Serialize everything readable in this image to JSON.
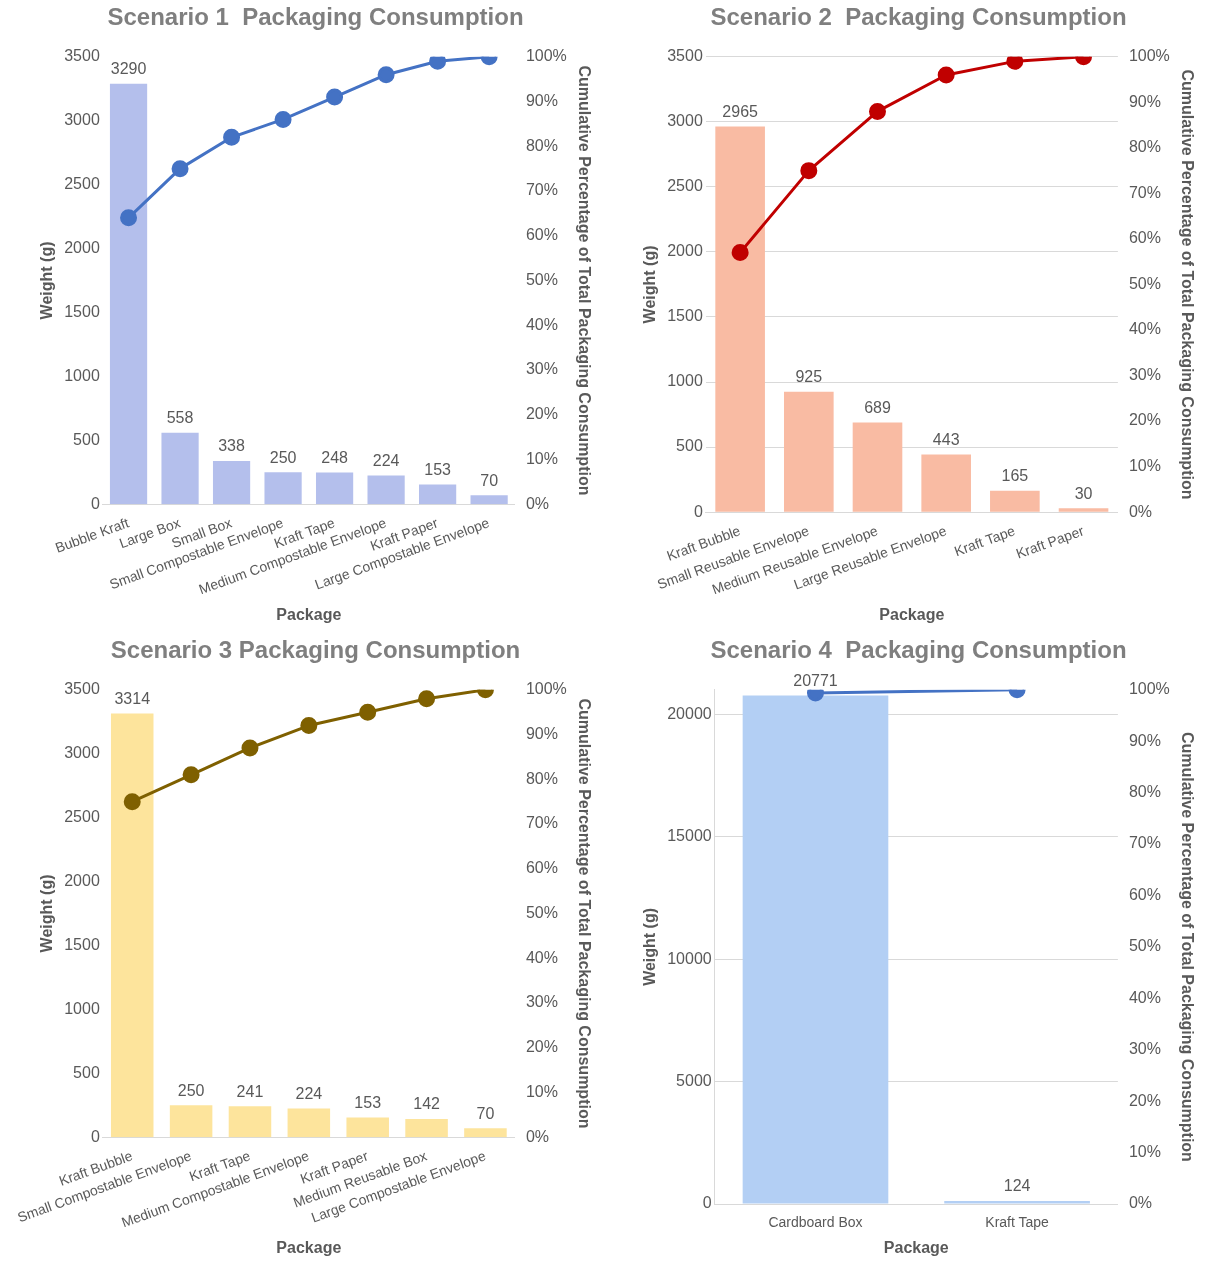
{
  "chart_data": [
    {
      "type": "bar",
      "title": "Scenario 1  Packaging Consumption",
      "xlabel": "Package",
      "ylabel": "Weight (g)",
      "y2label": "Cumulative Percentage of Total Packaging Consumption",
      "categories": [
        "Bubble Kraft",
        "Large Box",
        "Small Box",
        "Small Compostable Envelope",
        "Kraft Tape",
        "Medium Compostable Envelope",
        "Kraft Paper",
        "Large Compostable Envelope"
      ],
      "series": [
        {
          "color": "#b4bfec",
          "values": [
            3290,
            558,
            338,
            250,
            248,
            224,
            153,
            70
          ],
          "value_labels": [
            "3290",
            "558",
            "338",
            "250",
            "248",
            "224",
            "153",
            "70"
          ]
        },
        {
          "type": "line",
          "axis": "y2",
          "color": "#4472c4",
          "values": [
            64,
            75,
            82,
            86,
            91,
            96,
            99,
            100
          ]
        }
      ],
      "ylim": [
        0,
        3500
      ],
      "yticks": [
        0,
        500,
        1000,
        1500,
        2000,
        2500,
        3000,
        3500
      ],
      "y2lim": [
        0,
        100
      ],
      "y2ticks": [
        {
          "value": 0,
          "label": "0%"
        },
        {
          "value": 10,
          "label": "10%"
        },
        {
          "value": 20,
          "label": "20%"
        },
        {
          "value": 30,
          "label": "30%"
        },
        {
          "value": 40,
          "label": "40%"
        },
        {
          "value": 50,
          "label": "50%"
        },
        {
          "value": 60,
          "label": "60%"
        },
        {
          "value": 70,
          "label": "70%"
        },
        {
          "value": 80,
          "label": "80%"
        },
        {
          "value": 90,
          "label": "90%"
        },
        {
          "value": 100,
          "label": "100%"
        }
      ],
      "grid": false,
      "legend": false,
      "marker": "circle",
      "line_style": "solid"
    },
    {
      "type": "bar",
      "title": "Scenario 2  Packaging Consumption",
      "xlabel": "Package",
      "ylabel": "Weight (g)",
      "y2label": "Cumulative Percentage of Total Packaging Consumption",
      "categories": [
        "Kraft Bubble",
        "Small Reusable Envelope",
        "Medium Reusable Envelope",
        "Large Reusable Envelope",
        "Kraft Tape",
        "Kraft Paper"
      ],
      "series": [
        {
          "color": "#f9bba3",
          "values": [
            2965,
            925,
            689,
            443,
            165,
            30
          ],
          "value_labels": [
            "2965",
            "925",
            "689",
            "443",
            "165",
            "30"
          ]
        },
        {
          "type": "line",
          "axis": "y2",
          "color": "#c00000",
          "values": [
            57,
            75,
            88,
            96,
            99,
            100
          ]
        }
      ],
      "ylim": [
        0,
        3500
      ],
      "yticks": [
        0,
        500,
        1000,
        1500,
        2000,
        2500,
        3000,
        3500
      ],
      "y2lim": [
        0,
        100
      ],
      "y2ticks": [
        {
          "value": 0,
          "label": "0%"
        },
        {
          "value": 10,
          "label": "10%"
        },
        {
          "value": 20,
          "label": "20%"
        },
        {
          "value": 30,
          "label": "30%"
        },
        {
          "value": 40,
          "label": "40%"
        },
        {
          "value": 50,
          "label": "50%"
        },
        {
          "value": 60,
          "label": "60%"
        },
        {
          "value": 70,
          "label": "70%"
        },
        {
          "value": 80,
          "label": "80%"
        },
        {
          "value": 90,
          "label": "90%"
        },
        {
          "value": 100,
          "label": "100%"
        }
      ],
      "grid": "y",
      "legend": false,
      "marker": "circle",
      "line_style": "solid"
    },
    {
      "type": "bar",
      "title": "Scenario 3 Packaging Consumption",
      "xlabel": "Package",
      "ylabel": "Weight (g)",
      "y2label": "Cumulative Percentage of Total Packaging Consumption",
      "categories": [
        "Kraft Bubble",
        "Small Compostable Envelope",
        "Kraft Tape",
        "Medium Compostable Envelope",
        "Kraft Paper",
        "Medium Reusable Box",
        "Large Compostable Envelope"
      ],
      "series": [
        {
          "color": "#fde49c",
          "values": [
            3314,
            250,
            241,
            224,
            153,
            142,
            70
          ],
          "value_labels": [
            "3314",
            "250",
            "241",
            "224",
            "153",
            "142",
            "70"
          ]
        },
        {
          "type": "line",
          "axis": "y2",
          "color": "#7f6000",
          "values": [
            75,
            81,
            87,
            92,
            95,
            98,
            100
          ]
        }
      ],
      "ylim": [
        0,
        3500
      ],
      "yticks": [
        0,
        500,
        1000,
        1500,
        2000,
        2500,
        3000,
        3500
      ],
      "y2lim": [
        0,
        100
      ],
      "y2ticks": [
        {
          "value": 0,
          "label": "0%"
        },
        {
          "value": 10,
          "label": "10%"
        },
        {
          "value": 20,
          "label": "20%"
        },
        {
          "value": 30,
          "label": "30%"
        },
        {
          "value": 40,
          "label": "40%"
        },
        {
          "value": 50,
          "label": "50%"
        },
        {
          "value": 60,
          "label": "60%"
        },
        {
          "value": 70,
          "label": "70%"
        },
        {
          "value": 80,
          "label": "80%"
        },
        {
          "value": 90,
          "label": "90%"
        },
        {
          "value": 100,
          "label": "100%"
        }
      ],
      "grid": false,
      "legend": false,
      "marker": "circle",
      "line_style": "solid"
    },
    {
      "type": "bar",
      "title": "Scenario 4  Packaging Consumption",
      "xlabel": "Package",
      "ylabel": "Weight (g)",
      "y2label": "Cumulative Percentage of Total Packaging Consumption",
      "categories": [
        "Cardboard Box",
        "Kraft Tape"
      ],
      "series": [
        {
          "color": "#b3cff4",
          "values": [
            20771,
            124
          ],
          "value_labels": [
            "20771",
            "124"
          ]
        },
        {
          "type": "line",
          "axis": "y2",
          "color": "#4472c4",
          "values": [
            99.4,
            100
          ]
        }
      ],
      "ylim": [
        0,
        21000
      ],
      "yticks": [
        0,
        5000,
        10000,
        15000,
        20000
      ],
      "y2lim": [
        0,
        100
      ],
      "y2ticks": [
        {
          "value": 0,
          "label": "0%"
        },
        {
          "value": 10,
          "label": "10%"
        },
        {
          "value": 20,
          "label": "20%"
        },
        {
          "value": 30,
          "label": "30%"
        },
        {
          "value": 40,
          "label": "40%"
        },
        {
          "value": 50,
          "label": "50%"
        },
        {
          "value": 60,
          "label": "60%"
        },
        {
          "value": 70,
          "label": "70%"
        },
        {
          "value": 80,
          "label": "80%"
        },
        {
          "value": 90,
          "label": "90%"
        },
        {
          "value": 100,
          "label": "100%"
        }
      ],
      "grid": "y",
      "legend": false,
      "marker": "circle",
      "line_style": "solid"
    }
  ]
}
